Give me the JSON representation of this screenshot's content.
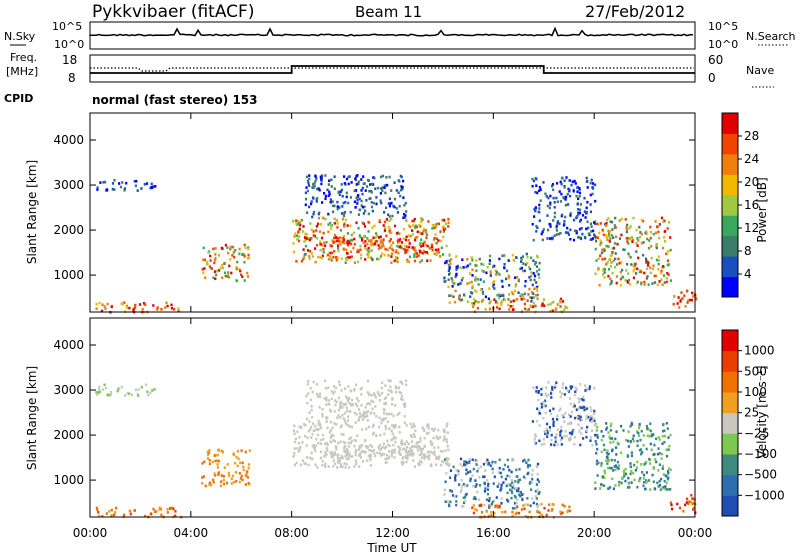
{
  "header": {
    "station": "Pykkvibaer (fitACF)",
    "beam": "Beam 11",
    "date": "27/Feb/2012"
  },
  "status_panels": {
    "nsky_label": "N.Sky",
    "nsearch_label": "N.Search",
    "noise_ticks": [
      "10^5",
      "10^0"
    ],
    "freq_label_line1": "Freq.",
    "freq_label_line2": "[MHz]",
    "freq_ticks": [
      "18",
      "8"
    ],
    "nave_label": "Nave",
    "nave_ticks": [
      "60",
      "0"
    ],
    "cpid_label": "CPID",
    "cpid_value": "normal (fast stereo) 153"
  },
  "chart_data": [
    {
      "type": "heatmap",
      "name": "power",
      "ylabel": "Slant Range [km]",
      "xlabel": "Time UT",
      "x_ticks": [
        "00:00",
        "04:00",
        "08:00",
        "12:00",
        "16:00",
        "20:00",
        "00:00"
      ],
      "y_ticks": [
        1000,
        2000,
        3000,
        4000
      ],
      "xlim_hours": [
        0,
        24
      ],
      "ylim_km": [
        180,
        4600
      ],
      "colorbar": {
        "label": "Power [dB]",
        "ticks": [
          "28",
          "24",
          "20",
          "16",
          "12",
          "8",
          "4"
        ],
        "colors": [
          "#0000ff",
          "#1a4fc0",
          "#3c7a6a",
          "#3aa85c",
          "#a0c840",
          "#f2b800",
          "#f07f10",
          "#ee4400",
          "#e00000"
        ]
      }
    },
    {
      "type": "heatmap",
      "name": "velocity",
      "ylabel": "Slant Range [km]",
      "xlabel": "Time UT",
      "x_ticks": [
        "00:00",
        "04:00",
        "08:00",
        "12:00",
        "16:00",
        "20:00",
        "00:00"
      ],
      "y_ticks": [
        1000,
        2000,
        3000,
        4000
      ],
      "xlim_hours": [
        0,
        24
      ],
      "ylim_km": [
        180,
        4600
      ],
      "colorbar": {
        "label": "Velocity [m s⁻¹]",
        "ticks": [
          "1000",
          "500",
          "100",
          "25",
          "−25",
          "−100",
          "−500",
          "−1000"
        ],
        "colors": [
          "#1e4eb4",
          "#2d6fae",
          "#3f8a80",
          "#7ec850",
          "#c8c8c0",
          "#f0a020",
          "#f07000",
          "#e84000",
          "#e00000"
        ]
      }
    }
  ]
}
